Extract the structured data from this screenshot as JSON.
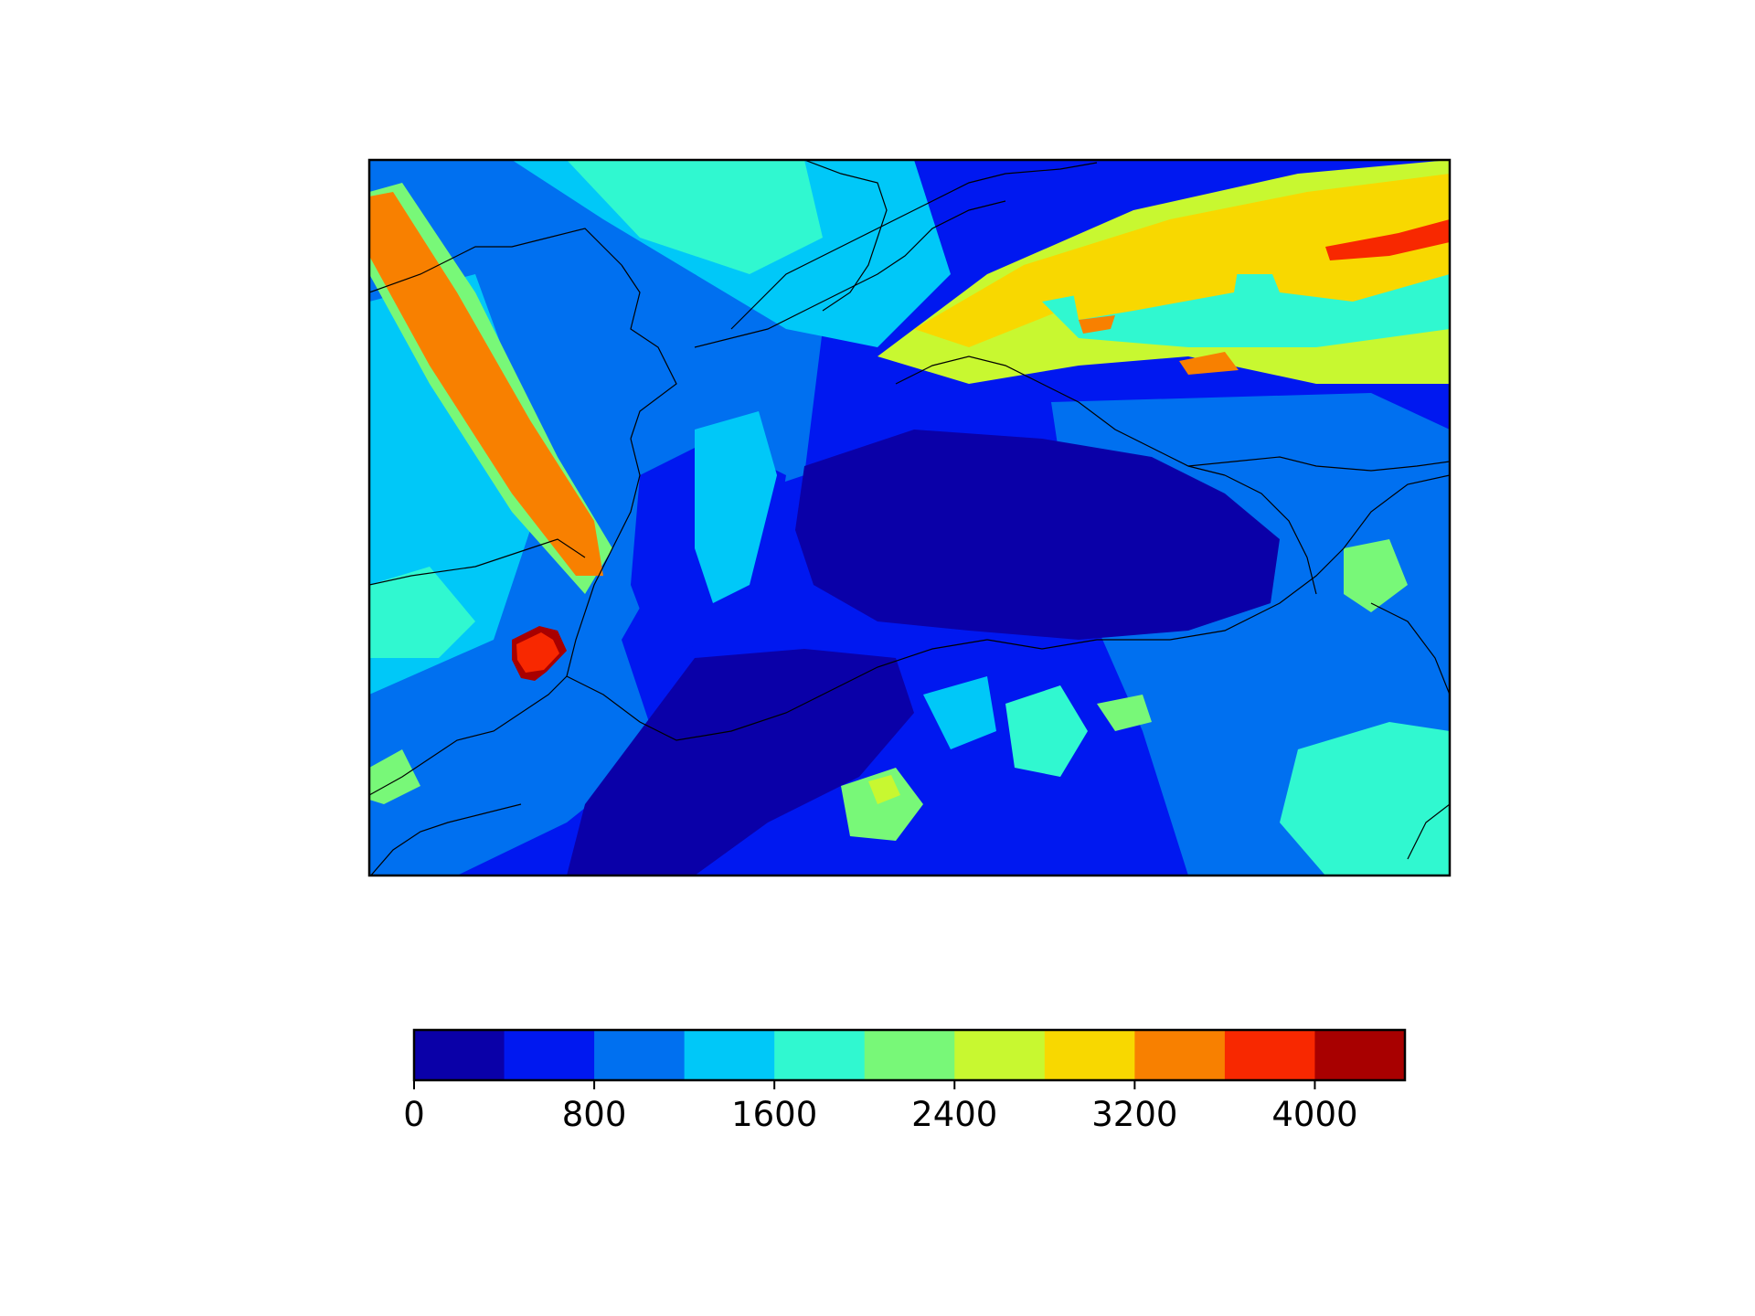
{
  "chart_data": {
    "type": "heatmap",
    "title": "",
    "xlabel": "",
    "ylabel": "",
    "colorbar": {
      "orientation": "horizontal",
      "position": "bottom",
      "levels": [
        0,
        400,
        800,
        1200,
        1600,
        2000,
        2400,
        2800,
        3200,
        3600,
        4000,
        4400
      ],
      "colors": [
        "#0a00a8",
        "#0018f0",
        "#0070f0",
        "#00c8f8",
        "#30f8d0",
        "#78f878",
        "#c8f830",
        "#f8d800",
        "#f88000",
        "#f82800",
        "#a80000"
      ],
      "tick_values": [
        0,
        800,
        1600,
        2400,
        3200,
        4000
      ],
      "tick_labels": [
        "0",
        "800",
        "1600",
        "2400",
        "3200",
        "4000"
      ]
    },
    "field": {
      "background_level": 1,
      "features": [
        {
          "name": "north-west band",
          "level": 3
        },
        {
          "name": "north-west band core",
          "level": 8
        },
        {
          "name": "south-west maximum",
          "level": 10
        },
        {
          "name": "north-east band",
          "level": 6
        },
        {
          "name": "north-east band core",
          "level": 7
        },
        {
          "name": "north-east maxima",
          "level": 9
        },
        {
          "name": "central low",
          "level": 0
        },
        {
          "name": "south-east scattered",
          "level": 5
        }
      ]
    },
    "grid": false,
    "borders": true
  }
}
